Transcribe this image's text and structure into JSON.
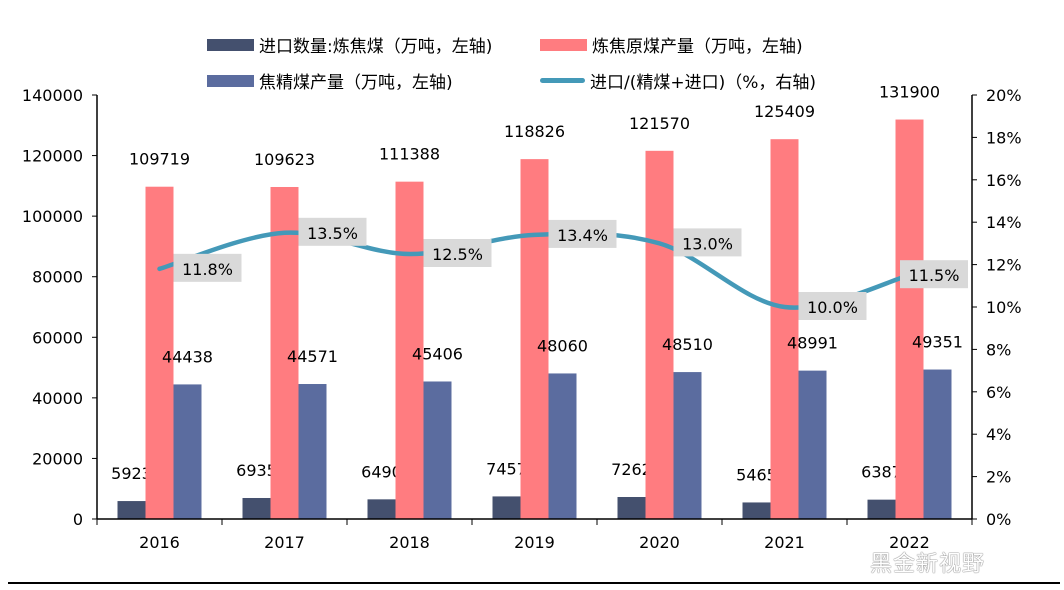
{
  "chart_data": {
    "type": "bar+line",
    "categories": [
      "2016",
      "2017",
      "2018",
      "2019",
      "2020",
      "2021",
      "2022"
    ],
    "series": [
      {
        "name": "进口数量:炼焦煤（万吨，左轴)",
        "type": "bar",
        "axis": "left",
        "color": "#44506e",
        "values": [
          5923,
          6935,
          6490,
          7457,
          7262,
          5465,
          6387
        ]
      },
      {
        "name": "炼焦原煤产量（万吨，左轴)",
        "type": "bar",
        "axis": "left",
        "color": "#ff7c80",
        "values": [
          109719,
          109623,
          111388,
          118826,
          121570,
          125409,
          131900
        ]
      },
      {
        "name": "焦精煤产量（万吨，左轴)",
        "type": "bar",
        "axis": "left",
        "color": "#5b6c9f",
        "values": [
          44438,
          44571,
          45406,
          48060,
          48510,
          48991,
          49351
        ]
      },
      {
        "name": "进口/(精煤+进口)（%，右轴)",
        "type": "line",
        "axis": "right",
        "color": "#4499b8",
        "values": [
          11.8,
          13.5,
          12.5,
          13.4,
          13.0,
          10.0,
          11.5
        ],
        "labels": [
          "11.8%",
          "13.5%",
          "12.5%",
          "13.4%",
          "13.0%",
          "10.0%",
          "11.5%"
        ]
      }
    ],
    "left_axis": {
      "range": [
        0,
        140000
      ],
      "ticks": [
        "0",
        "20000",
        "40000",
        "60000",
        "80000",
        "100000",
        "120000",
        "140000"
      ]
    },
    "right_axis": {
      "range": [
        0,
        20
      ],
      "ticks": [
        "0%",
        "2%",
        "4%",
        "6%",
        "8%",
        "10%",
        "12%",
        "14%",
        "16%",
        "18%",
        "20%"
      ]
    },
    "legend_position": "top",
    "grid": false
  },
  "watermark": "黑金新视野"
}
